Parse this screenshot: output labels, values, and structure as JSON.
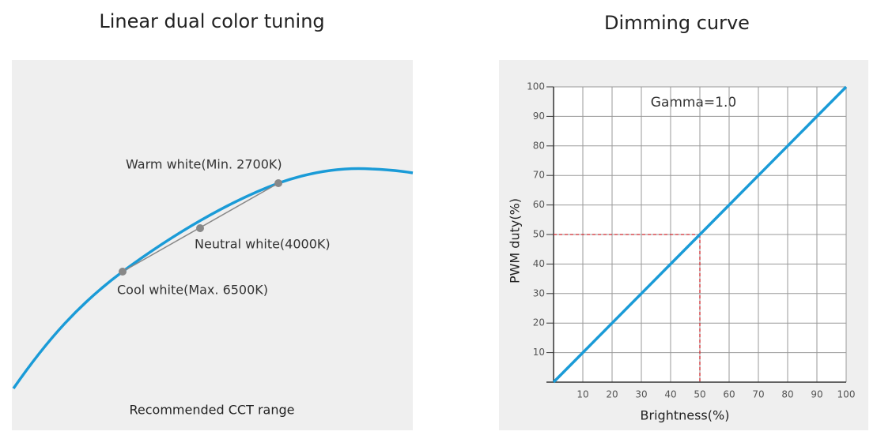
{
  "diagram": {
    "title": "Linear dual color tuning",
    "points": [
      {
        "label": "Warm white(Min. 2700K)"
      },
      {
        "label": "Neutral white(4000K)"
      },
      {
        "label": "Cool white(Max. 6500K)"
      }
    ],
    "caption": "Recommended CCT range"
  },
  "chart_data": {
    "type": "line",
    "title": "Dimming curve",
    "annotation": "Gamma=1.0",
    "xlabel": "Brightness(%)",
    "ylabel": "PWM duty(%)",
    "x": [
      0,
      10,
      20,
      30,
      40,
      50,
      60,
      70,
      80,
      90,
      100
    ],
    "series": [
      {
        "name": "Gamma=1.0",
        "color": "#1a9bd7",
        "values": [
          0,
          10,
          20,
          30,
          40,
          50,
          60,
          70,
          80,
          90,
          100
        ]
      }
    ],
    "xlim": [
      0,
      100
    ],
    "ylim": [
      0,
      100
    ],
    "xticks": [
      10,
      20,
      30,
      40,
      50,
      60,
      70,
      80,
      90,
      100
    ],
    "yticks": [
      10,
      20,
      30,
      40,
      50,
      60,
      70,
      80,
      90,
      100
    ],
    "grid": true,
    "reference": {
      "x": 50,
      "y": 50,
      "color": "#d0282e"
    }
  }
}
